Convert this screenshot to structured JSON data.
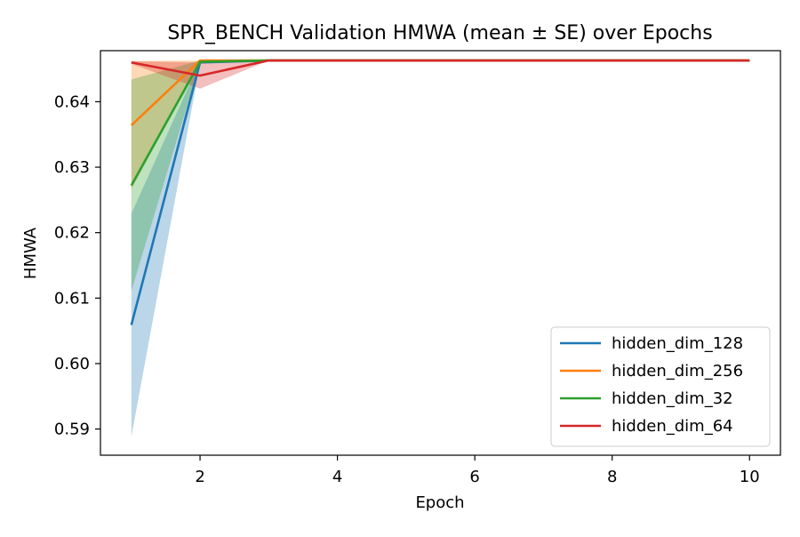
{
  "chart_data": {
    "type": "line",
    "title": "SPR_BENCH Validation HMWA (mean ± SE) over Epochs",
    "xlabel": "Epoch",
    "ylabel": "HMWA",
    "xlim": [
      0.55,
      10.45
    ],
    "ylim": [
      0.586,
      0.6478
    ],
    "xticks": [
      2,
      4,
      6,
      8,
      10
    ],
    "yticks": [
      0.59,
      0.6,
      0.61,
      0.62,
      0.63,
      0.64
    ],
    "ytick_labels": [
      "0.59",
      "0.60",
      "0.61",
      "0.62",
      "0.63",
      "0.64"
    ],
    "grid": false,
    "legend": "lower-right",
    "x": [
      1,
      2,
      3,
      4,
      5,
      6,
      7,
      8,
      9,
      10
    ],
    "series": [
      {
        "name": "hidden_dim_128",
        "color": "#1f77b4",
        "mean": [
          0.6059,
          0.646,
          0.6463,
          0.6463,
          0.6463,
          0.6463,
          0.6463,
          0.6463,
          0.6463,
          0.6463
        ],
        "lower": [
          0.5888,
          0.6458,
          0.6463,
          0.6463,
          0.6463,
          0.6463,
          0.6463,
          0.6463,
          0.6463,
          0.6463
        ],
        "upper": [
          0.6229,
          0.6462,
          0.6463,
          0.6463,
          0.6463,
          0.6463,
          0.6463,
          0.6463,
          0.6463,
          0.6463
        ]
      },
      {
        "name": "hidden_dim_256",
        "color": "#ff7f0e",
        "mean": [
          0.6364,
          0.6463,
          0.6463,
          0.6463,
          0.6463,
          0.6463,
          0.6463,
          0.6463,
          0.6463,
          0.6463
        ],
        "lower": [
          0.6266,
          0.6463,
          0.6463,
          0.6463,
          0.6463,
          0.6463,
          0.6463,
          0.6463,
          0.6463,
          0.6463
        ],
        "upper": [
          0.6462,
          0.6463,
          0.6463,
          0.6463,
          0.6463,
          0.6463,
          0.6463,
          0.6463,
          0.6463,
          0.6463
        ]
      },
      {
        "name": "hidden_dim_32",
        "color": "#2ca02c",
        "mean": [
          0.6272,
          0.6461,
          0.6463,
          0.6463,
          0.6463,
          0.6463,
          0.6463,
          0.6463,
          0.6463,
          0.6463
        ],
        "lower": [
          0.6111,
          0.6459,
          0.6463,
          0.6463,
          0.6463,
          0.6463,
          0.6463,
          0.6463,
          0.6463,
          0.6463
        ],
        "upper": [
          0.6434,
          0.6463,
          0.6463,
          0.6463,
          0.6463,
          0.6463,
          0.6463,
          0.6463,
          0.6463,
          0.6463
        ]
      },
      {
        "name": "hidden_dim_64",
        "color": "#d62728",
        "mean": [
          0.646,
          0.644,
          0.6463,
          0.6463,
          0.6463,
          0.6463,
          0.6463,
          0.6463,
          0.6463,
          0.6463
        ],
        "lower": [
          0.6458,
          0.642,
          0.6463,
          0.6463,
          0.6463,
          0.6463,
          0.6463,
          0.6463,
          0.6463,
          0.6463
        ],
        "upper": [
          0.6462,
          0.646,
          0.6463,
          0.6463,
          0.6463,
          0.6463,
          0.6463,
          0.6463,
          0.6463,
          0.6463
        ]
      }
    ]
  }
}
